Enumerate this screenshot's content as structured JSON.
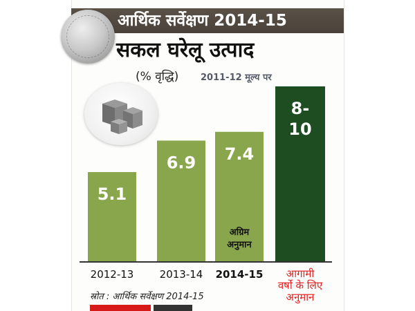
{
  "header": {
    "title": "आर्थिक सर्वेक्षण 2014-15"
  },
  "heading": {
    "title": "सकल घरेलू उत्पाद",
    "subtitle": "(% वृद्धि)",
    "base": "2011-12 मूल्य पर"
  },
  "source": "स्रोत : आर्थिक सर्वेक्षण 2014-15",
  "colors": {
    "header_band": "#4f473e",
    "bar_green": "#8aa64c",
    "bar_dark_green": "#1f4d22",
    "label_red": "#e41b1b",
    "value_text": "#ffffff"
  },
  "icons": [
    "rupee-coin-icon",
    "boxes-icon"
  ],
  "chart_data": {
    "type": "bar",
    "categories": [
      "2012-13",
      "2013-14",
      "2014-15",
      "आगामी वर्षो के लिए अनुमान"
    ],
    "values": [
      5.1,
      6.9,
      7.4,
      [
        8,
        10
      ]
    ],
    "value_labels": [
      "5.1",
      "6.9",
      "7.4",
      "8-\n10"
    ],
    "bar_notes": [
      "",
      "",
      "अग्रिम\nअनुमान",
      ""
    ],
    "category_styles": [
      "normal",
      "normal",
      "bold",
      "red"
    ],
    "title": "सकल घरेलू उत्पाद",
    "subtitle": "(% वृद्धि)",
    "xlabel": "",
    "ylabel": "",
    "grid": false,
    "legend": "none"
  }
}
